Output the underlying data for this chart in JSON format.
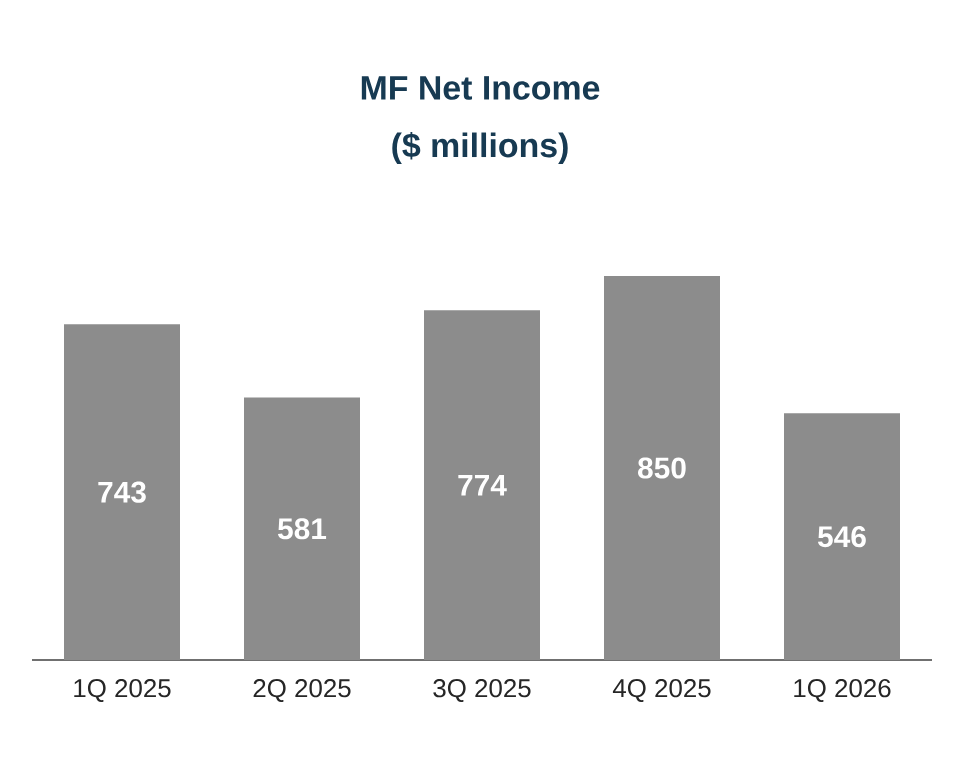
{
  "chart_data": {
    "type": "bar",
    "title": "MF Net Income",
    "subtitle": "($ millions)",
    "categories": [
      "1Q 2025",
      "2Q 2025",
      "3Q 2025",
      "4Q 2025",
      "1Q 2026"
    ],
    "values": [
      743,
      581,
      774,
      850,
      546
    ],
    "color": "#8c8c8c",
    "data_labels": true,
    "ylim": [
      0,
      850
    ]
  }
}
